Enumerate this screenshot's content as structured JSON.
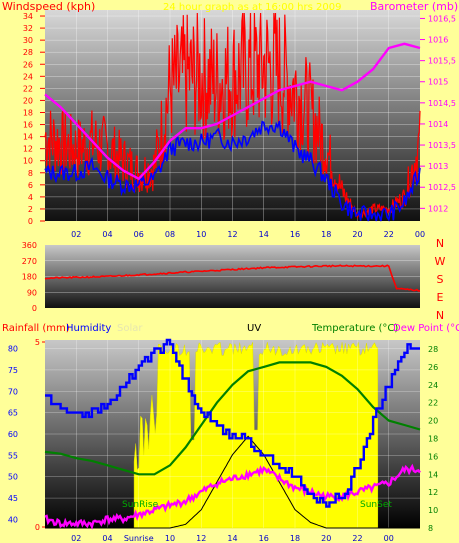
{
  "colors": {
    "page_bg": "#ffff99",
    "wind_red": "#ff0000",
    "barometer": "#ff00ff",
    "gust_blue": "#0000ff",
    "grid": "#ffffff",
    "solar": "#ffff00",
    "temp": "#008000",
    "humidity": "#0000ff",
    "uv": "#000000",
    "title_yellow": "#ffff00"
  },
  "top_chart": {
    "title_left": "Windspeed (kph)",
    "title_center": "24 hour graph as at 16:00 hrs 2009",
    "title_right": "Barometer (mb)",
    "y_left_ticks": [
      "0",
      "2",
      "4",
      "6",
      "8",
      "10",
      "12",
      "14",
      "16",
      "18",
      "20",
      "22",
      "24",
      "26",
      "28",
      "30",
      "32",
      "34"
    ],
    "y_right_ticks": [
      "1012",
      "1012,5",
      "1013",
      "1013,5",
      "1014",
      "1014,5",
      "1015",
      "1015,5",
      "1016",
      "1016,5"
    ],
    "x_ticks": [
      "02",
      "04",
      "06",
      "08",
      "10",
      "12",
      "14",
      "16",
      "18",
      "20",
      "22",
      "00"
    ]
  },
  "mid_chart": {
    "y_ticks": [
      "0",
      "90",
      "180",
      "270",
      "360"
    ],
    "compass": [
      "N",
      "W",
      "S",
      "E",
      "N"
    ]
  },
  "bottom_chart": {
    "legend": {
      "rainfall": "Rainfall (mm)",
      "humidity": "Humidity",
      "solar": "Solar",
      "uv": "UV",
      "temperature": "Temperature (°C)",
      "dew_point": "Dew Point (°C)"
    },
    "y_left_ticks": [
      "40",
      "45",
      "50",
      "55",
      "60",
      "65",
      "70",
      "75",
      "80"
    ],
    "y_left_rain_ticks": [
      "0",
      "5"
    ],
    "y_right_ticks": [
      "8",
      "10",
      "12",
      "14",
      "16",
      "18",
      "20",
      "22",
      "24",
      "26",
      "28"
    ],
    "x_ticks": [
      "02",
      "04",
      "Sunrise",
      "10",
      "12",
      "14",
      "16",
      "18",
      "20",
      "22",
      "00"
    ],
    "annotations": {
      "sunrise": "SunRise",
      "sunset": "SunSet"
    }
  },
  "chart_data": [
    {
      "type": "line",
      "title": "24 hour graph as at 16:00 hrs 2009",
      "ylabel": "Windspeed (kph)",
      "y2label": "Barometer (mb)",
      "ylim": [
        0,
        35
      ],
      "y2lim": [
        1011.7,
        1016.7
      ],
      "x_hours": [
        0,
        1,
        2,
        3,
        4,
        5,
        6,
        7,
        8,
        9,
        10,
        11,
        12,
        13,
        14,
        15,
        16,
        17,
        18,
        19,
        20,
        21,
        22,
        23,
        24
      ],
      "series": [
        {
          "name": "Windspeed (kph)",
          "values": [
            14,
            13,
            12,
            13,
            12,
            10,
            8,
            9,
            22,
            24,
            24,
            23,
            24,
            25,
            26,
            25,
            22,
            18,
            12,
            5,
            1,
            2,
            2,
            4,
            13
          ]
        },
        {
          "name": "Gust",
          "values": [
            8,
            8,
            8,
            9,
            7,
            6,
            6,
            7,
            12,
            13,
            13,
            14,
            13,
            14,
            16,
            16,
            12,
            10,
            7,
            3,
            1,
            1,
            1,
            3,
            8
          ]
        },
        {
          "name": "Barometer (mb)",
          "values": [
            1014.7,
            1014.4,
            1014.0,
            1013.6,
            1013.2,
            1012.9,
            1012.7,
            1013.1,
            1013.6,
            1013.9,
            1013.9,
            1014.0,
            1014.2,
            1014.4,
            1014.6,
            1014.8,
            1014.9,
            1015.0,
            1014.9,
            1014.8,
            1015.0,
            1015.3,
            1015.8,
            1015.9,
            1015.8
          ]
        }
      ]
    },
    {
      "type": "line",
      "ylabel": "Wind direction",
      "ylim": [
        0,
        360
      ],
      "x_hours": [
        0,
        2,
        4,
        6,
        8,
        10,
        12,
        14,
        16,
        18,
        20,
        22,
        22.5,
        24
      ],
      "series": [
        {
          "name": "Wind direction",
          "values": [
            170,
            175,
            180,
            190,
            200,
            210,
            220,
            230,
            235,
            240,
            240,
            240,
            110,
            100
          ]
        }
      ]
    },
    {
      "type": "line",
      "ylabel": "Humidity",
      "y2label": "Temperature (°C)",
      "ylim": [
        38,
        82
      ],
      "y2lim": [
        8,
        29
      ],
      "x_hours": [
        0,
        1,
        2,
        3,
        4,
        5,
        6,
        7,
        8,
        9,
        10,
        11,
        12,
        13,
        14,
        15,
        16,
        17,
        18,
        19,
        20,
        21,
        22,
        23,
        24
      ],
      "series": [
        {
          "name": "Humidity",
          "values": [
            69,
            66,
            65,
            65,
            67,
            71,
            76,
            80,
            81,
            72,
            65,
            62,
            60,
            58,
            55,
            53,
            50,
            45,
            44,
            45,
            53,
            63,
            72,
            80,
            80
          ]
        },
        {
          "name": "Temperature (°C)",
          "values": [
            16.5,
            16.3,
            15.8,
            15.5,
            15.0,
            14.5,
            14.0,
            14.0,
            15.0,
            17.0,
            19.5,
            22.0,
            24.0,
            25.5,
            26.0,
            26.5,
            26.5,
            26.5,
            26.0,
            25.0,
            23.5,
            21.5,
            20.0,
            19.5,
            19.0
          ]
        },
        {
          "name": "Dew Point (°C)",
          "values": [
            9,
            8.5,
            8.5,
            8.5,
            9,
            9,
            9.5,
            10,
            10.5,
            11,
            12,
            13,
            13.5,
            14,
            14.5,
            13.5,
            12.5,
            12,
            11.5,
            11.5,
            12,
            12.5,
            13,
            14.5,
            14.5
          ]
        },
        {
          "name": "UV",
          "values": [
            0,
            0,
            0,
            0,
            0,
            0,
            0,
            0,
            0,
            0.2,
            1,
            2.5,
            4,
            5,
            4,
            2.5,
            1,
            0.3,
            0,
            0,
            0,
            0,
            0,
            0,
            0
          ]
        }
      ]
    }
  ]
}
